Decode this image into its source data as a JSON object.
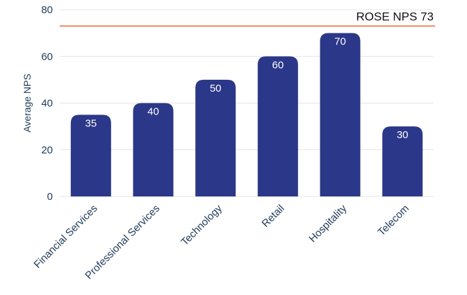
{
  "chart_data": {
    "type": "bar",
    "categories": [
      "Financial Services",
      "Professional Services",
      "Technology",
      "Retail",
      "Hospitality",
      "Telecom"
    ],
    "values": [
      35,
      40,
      50,
      60,
      70,
      30
    ],
    "data_labels": [
      "35",
      "40",
      "50",
      "60",
      "70",
      "30"
    ],
    "title": "",
    "xlabel": "",
    "ylabel": "Average NPS",
    "ylim": [
      0,
      80
    ],
    "yticks": [
      0,
      20,
      40,
      60,
      80
    ],
    "grid": true,
    "bar_color": "#2b3788",
    "reference_line": {
      "value": 73,
      "label": "ROSE NPS 73",
      "color": "#f0845c"
    }
  }
}
